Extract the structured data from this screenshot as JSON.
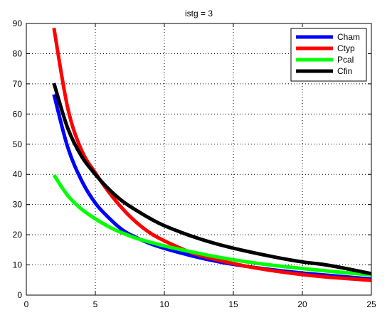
{
  "chart_data": {
    "type": "line",
    "title": "istg = 3",
    "xlabel": "",
    "ylabel": "",
    "xlim": [
      0,
      25
    ],
    "ylim": [
      0,
      90
    ],
    "xticks": [
      0,
      5,
      10,
      15,
      20,
      25
    ],
    "yticks": [
      0,
      10,
      20,
      30,
      40,
      50,
      60,
      70,
      80,
      90
    ],
    "grid": true,
    "legend_position": "top-right",
    "series": [
      {
        "name": "Cham",
        "color": "#0000ff",
        "x": [
          2,
          3,
          4,
          5,
          6,
          7,
          8,
          9,
          10,
          12,
          14,
          16,
          18,
          20,
          22,
          25
        ],
        "y": [
          66.5,
          49,
          38,
          30.5,
          25.5,
          21.5,
          19,
          17,
          15.5,
          13,
          11,
          9.5,
          8.3,
          7.3,
          6.5,
          5.3
        ]
      },
      {
        "name": "Ctyp",
        "color": "#ff0000",
        "x": [
          2,
          3,
          4,
          5,
          6,
          7,
          8,
          9,
          10,
          12,
          14,
          16,
          18,
          20,
          22,
          25
        ],
        "y": [
          88.5,
          62,
          48,
          40.5,
          34,
          28.5,
          24,
          20.5,
          18,
          14,
          11.5,
          9.5,
          8,
          6.8,
          5.9,
          4.9
        ]
      },
      {
        "name": "Pcal",
        "color": "#00ff00",
        "x": [
          2,
          3,
          4,
          5,
          6,
          7,
          8,
          9,
          10,
          12,
          14,
          16,
          18,
          20,
          22,
          25
        ],
        "y": [
          39.8,
          33,
          28.5,
          25.3,
          22.6,
          20.5,
          18.8,
          17.5,
          16.3,
          14.3,
          12.5,
          11,
          9.8,
          8.8,
          7.9,
          6.7
        ]
      },
      {
        "name": "Cfin",
        "color": "#000000",
        "x": [
          2,
          3,
          4,
          5,
          6,
          7,
          8,
          9,
          10,
          12,
          14,
          16,
          18,
          20,
          22,
          25
        ],
        "y": [
          70.2,
          55.3,
          46,
          40,
          35,
          31,
          28,
          25.3,
          23,
          19.5,
          16.7,
          14.5,
          12.6,
          11,
          9.8,
          7.1
        ]
      }
    ]
  }
}
